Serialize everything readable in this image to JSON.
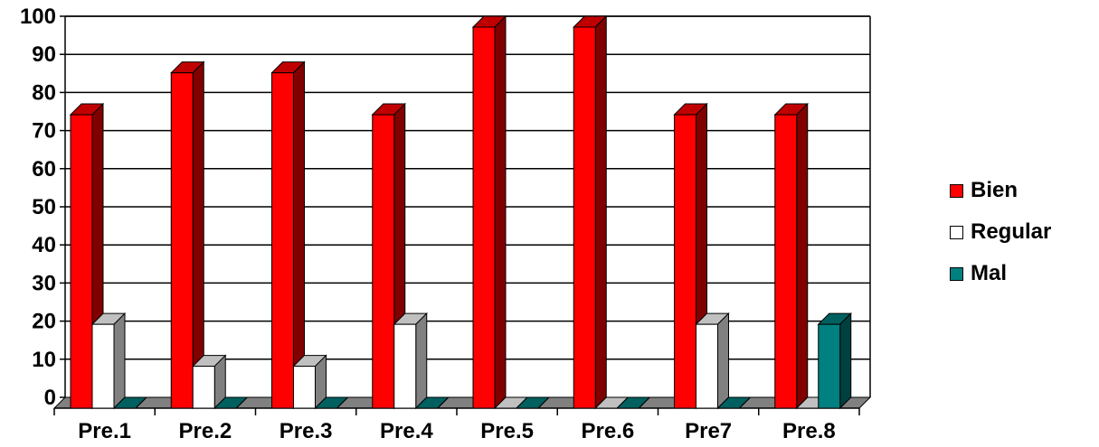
{
  "chart_data": {
    "type": "bar",
    "categories": [
      "Pre.1",
      "Pre.2",
      "Pre.3",
      "Pre.4",
      "Pre.5",
      "Pre.6",
      "Pre7",
      "Pre.8"
    ],
    "series": [
      {
        "name": "Bien",
        "values": [
          77,
          88,
          88,
          77,
          100,
          100,
          77,
          77
        ],
        "color": "#ff0000"
      },
      {
        "name": "Regular",
        "values": [
          22,
          11,
          11,
          22,
          0,
          0,
          22,
          0
        ],
        "color": "#ffffff"
      },
      {
        "name": "Mal",
        "values": [
          0,
          0,
          0,
          0,
          0,
          0,
          0,
          22
        ],
        "color": "#008080"
      }
    ],
    "ylim": [
      0,
      100
    ],
    "yticks": [
      0,
      10,
      20,
      30,
      40,
      50,
      60,
      70,
      80,
      90,
      100
    ],
    "grid": true,
    "legend": "right",
    "title": "",
    "xlabel": "",
    "ylabel": ""
  }
}
